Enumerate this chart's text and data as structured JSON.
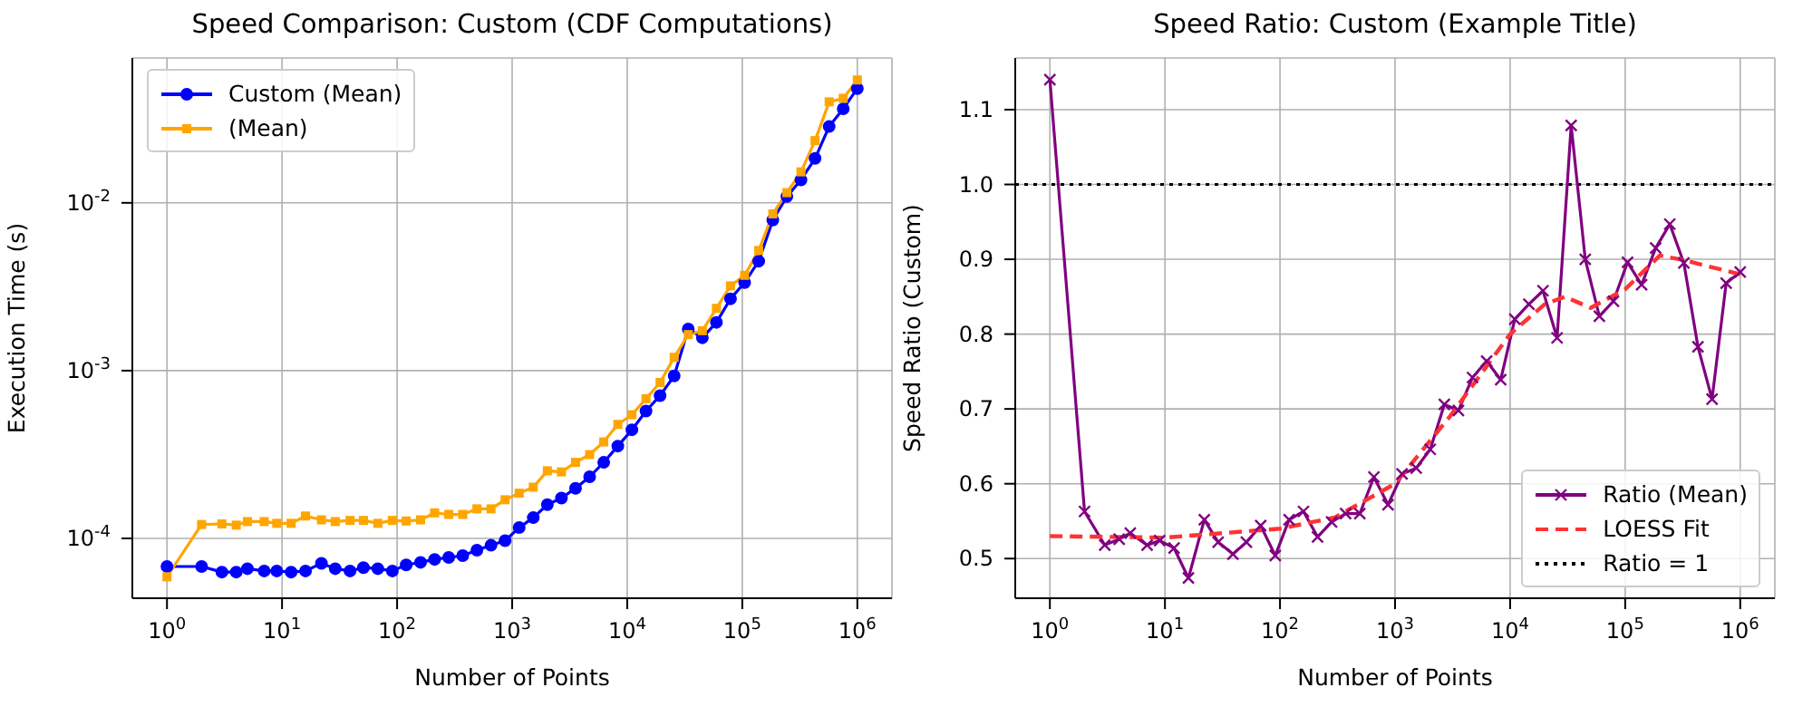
{
  "chart_data": [
    {
      "type": "line",
      "title": "Speed Comparison: Custom (CDF Computations)",
      "xlabel": "Number of Points",
      "ylabel": "Execution Time (s)",
      "log": "xy",
      "xlim": [
        0.5,
        2000000
      ],
      "xticks": [
        {
          "value": 1,
          "label": "10$^{0}$"
        },
        {
          "value": 10,
          "label": "10$^{1}$"
        },
        {
          "value": 100,
          "label": "10$^{2}$"
        },
        {
          "value": 1000,
          "label": "10$^{3}$"
        },
        {
          "value": 10000,
          "label": "10$^{4}$"
        },
        {
          "value": 100000,
          "label": "10$^{5}$"
        },
        {
          "value": 1000000,
          "label": "10$^{6}$"
        }
      ],
      "ylim": [
        4.4e-05,
        0.073
      ],
      "yticks": [
        {
          "value": 0.0001,
          "label": "10$^{-4}$"
        },
        {
          "value": 0.001,
          "label": "10$^{-3}$"
        },
        {
          "value": 0.01,
          "label": "10$^{-2}$"
        }
      ],
      "grid": true,
      "legend": "top left",
      "line_style": "solid",
      "x": [
        1,
        2,
        3,
        4,
        5,
        7,
        9,
        12,
        16,
        22,
        29,
        39,
        51,
        68,
        91,
        120,
        160,
        212,
        281,
        372,
        494,
        655,
        868,
        1151,
        1526,
        2023,
        2682,
        3556,
        4714,
        6250,
        8286,
        10985,
        14563,
        19306,
        25595,
        33932,
        44984,
        59636,
        79060,
        104811,
        138949,
        184206,
        244205,
        323745,
        429193,
        568986,
        754312,
        1000000
      ],
      "series": [
        {
          "name": "Custom (Mean)",
          "color": "#0000ff",
          "marker": "circle",
          "values": [
            6.8e-05,
            6.8e-05,
            6.3e-05,
            6.3e-05,
            6.6e-05,
            6.4e-05,
            6.4e-05,
            6.3e-05,
            6.4e-05,
            7.1e-05,
            6.6e-05,
            6.4e-05,
            6.7e-05,
            6.6e-05,
            6.4e-05,
            6.95e-05,
            7.2e-05,
            7.5e-05,
            7.7e-05,
            7.9e-05,
            8.5e-05,
            9.1e-05,
            9.7e-05,
            0.000116,
            0.000133,
            0.000159,
            0.000174,
            0.000199,
            0.000233,
            0.000284,
            0.000355,
            0.000444,
            0.000574,
            0.00071,
            0.00093,
            0.00177,
            0.00157,
            0.00194,
            0.00268,
            0.00335,
            0.00449,
            0.0079,
            0.0109,
            0.0137,
            0.0184,
            0.0285,
            0.0364,
            0.048
          ]
        },
        {
          "name": "(Mean)",
          "color": "#ffa500",
          "marker": "square",
          "values": [
            5.9e-05,
            0.000121,
            0.000122,
            0.00012,
            0.000126,
            0.000126,
            0.000123,
            0.000123,
            0.000136,
            0.000129,
            0.000126,
            0.000128,
            0.000128,
            0.000123,
            0.000128,
            0.000127,
            0.000129,
            0.000142,
            0.000139,
            0.000139,
            0.00015,
            0.00015,
            0.00017,
            0.000186,
            0.000202,
            0.000253,
            0.000249,
            0.000284,
            0.000316,
            0.000376,
            0.000478,
            0.000546,
            0.00068,
            0.00085,
            0.0012,
            0.00164,
            0.00173,
            0.00235,
            0.0032,
            0.0037,
            0.0052,
            0.0086,
            0.0115,
            0.0153,
            0.0235,
            0.04,
            0.042,
            0.054
          ]
        }
      ]
    },
    {
      "type": "line",
      "title": "Speed Ratio: Custom (Example Title)",
      "xlabel": "Number of Points",
      "ylabel": "Speed Ratio (Custom)",
      "log": "x",
      "xlim": [
        0.5,
        2000000
      ],
      "xticks": [
        {
          "value": 1,
          "label": "10$^{0}$"
        },
        {
          "value": 10,
          "label": "10$^{1}$"
        },
        {
          "value": 100,
          "label": "10$^{2}$"
        },
        {
          "value": 1000,
          "label": "10$^{3}$"
        },
        {
          "value": 10000,
          "label": "10$^{4}$"
        },
        {
          "value": 100000,
          "label": "10$^{5}$"
        },
        {
          "value": 1000000,
          "label": "10$^{6}$"
        }
      ],
      "ylim": [
        0.447,
        1.169
      ],
      "yticks": [
        0.5,
        0.6,
        0.7,
        0.8,
        0.9,
        {
          "value": 1,
          "label": "1.0"
        },
        1.1
      ],
      "grid": true,
      "legend": "bottom right",
      "line_style": "solid",
      "x": [
        1,
        2,
        3,
        4,
        5,
        7,
        9,
        12,
        16,
        22,
        29,
        39,
        51,
        68,
        91,
        120,
        160,
        212,
        281,
        372,
        494,
        655,
        868,
        1151,
        1526,
        2023,
        2682,
        3556,
        4714,
        6250,
        8286,
        10985,
        14563,
        19306,
        25595,
        33932,
        44984,
        59636,
        79060,
        104811,
        138949,
        184206,
        244205,
        323745,
        429193,
        568986,
        754312,
        1000000
      ],
      "series": [
        {
          "name": "Ratio (Mean)",
          "color": "#800080",
          "marker": "cross",
          "values": [
            1.14,
            0.563,
            0.518,
            0.526,
            0.534,
            0.518,
            0.524,
            0.514,
            0.474,
            0.552,
            0.522,
            0.506,
            0.522,
            0.544,
            0.504,
            0.552,
            0.563,
            0.529,
            0.549,
            0.56,
            0.56,
            0.609,
            0.572,
            0.613,
            0.621,
            0.646,
            0.706,
            0.698,
            0.742,
            0.764,
            0.739,
            0.82,
            0.84,
            0.858,
            0.795,
            1.079,
            0.9,
            0.824,
            0.844,
            0.896,
            0.866,
            0.915,
            0.947,
            0.895,
            0.783,
            0.713,
            0.868,
            0.883
          ]
        },
        {
          "name": "LOESS Fit",
          "color": "#ff3333",
          "marker": "none",
          "line_style": "dashed",
          "x": [
            1,
            10,
            100,
            300,
            1000,
            3000,
            10000,
            20000,
            30000,
            50000,
            100000,
            200000,
            300000,
            1000000
          ],
          "values": [
            0.53,
            0.528,
            0.54,
            0.555,
            0.6,
            0.69,
            0.8,
            0.84,
            0.85,
            0.835,
            0.86,
            0.905,
            0.9,
            0.88
          ]
        }
      ],
      "ref_lines": [
        {
          "axis": "y",
          "value": 1,
          "label": "Ratio = 1",
          "color": "#000000",
          "line_style": "dotted"
        }
      ]
    }
  ]
}
